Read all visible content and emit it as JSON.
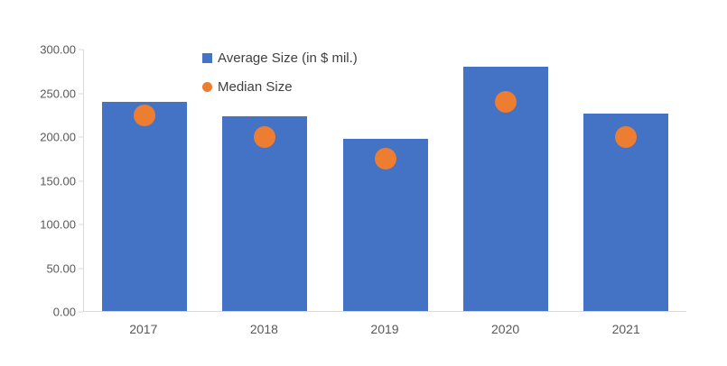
{
  "chart_data": {
    "type": "bar",
    "title": "",
    "xlabel": "",
    "ylabel": "",
    "categories": [
      "2017",
      "2018",
      "2019",
      "2020",
      "2021"
    ],
    "series": [
      {
        "name": "Average Size (in $ mil.)",
        "type": "bar",
        "color": "#4472C4",
        "values": [
          240,
          223,
          198,
          280,
          227
        ]
      },
      {
        "name": "Median Size",
        "type": "scatter",
        "color": "#ED7D31",
        "values": [
          225,
          200,
          175,
          240,
          200
        ]
      }
    ],
    "ylim": [
      0,
      300
    ],
    "yticks": [
      {
        "value": 0,
        "label": "0.00"
      },
      {
        "value": 50,
        "label": "50.00"
      },
      {
        "value": 100,
        "label": "100.00"
      },
      {
        "value": 150,
        "label": "150.00"
      },
      {
        "value": 200,
        "label": "200.00"
      },
      {
        "value": 250,
        "label": "250.00"
      },
      {
        "value": 300,
        "label": "300.00"
      }
    ],
    "grid": false,
    "legend_position": "top-center-stacked"
  },
  "colors": {
    "bar_fill": "#4472C4",
    "marker_fill": "#ED7D31",
    "axis_line": "#d9d9d9",
    "axis_text": "#595959",
    "legend_text": "#404040",
    "background": "#ffffff"
  }
}
